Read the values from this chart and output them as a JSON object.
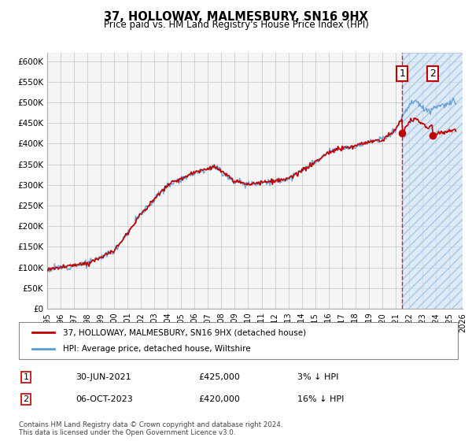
{
  "title": "37, HOLLOWAY, MALMESBURY, SN16 9HX",
  "subtitle": "Price paid vs. HM Land Registry's House Price Index (HPI)",
  "legend_line1": "37, HOLLOWAY, MALMESBURY, SN16 9HX (detached house)",
  "legend_line2": "HPI: Average price, detached house, Wiltshire",
  "annotation1_date": "30-JUN-2021",
  "annotation1_price": "£425,000",
  "annotation1_pct": "3% ↓ HPI",
  "annotation2_date": "06-OCT-2023",
  "annotation2_price": "£420,000",
  "annotation2_pct": "16% ↓ HPI",
  "footer": "Contains HM Land Registry data © Crown copyright and database right 2024.\nThis data is licensed under the Open Government Licence v3.0.",
  "hpi_color": "#5b9bd5",
  "price_color": "#c00000",
  "dashed_color": "#c00000",
  "sale1_x": 2021.5,
  "sale1_y": 425000,
  "sale2_x": 2023.75,
  "sale2_y": 420000,
  "ylim": [
    0,
    620000
  ],
  "xlim_start": 1995,
  "xlim_end": 2026,
  "yticks": [
    0,
    50000,
    100000,
    150000,
    200000,
    250000,
    300000,
    350000,
    400000,
    450000,
    500000,
    550000,
    600000
  ],
  "xticks": [
    1995,
    1996,
    1997,
    1998,
    1999,
    2000,
    2001,
    2002,
    2003,
    2004,
    2005,
    2006,
    2007,
    2008,
    2009,
    2010,
    2011,
    2012,
    2013,
    2014,
    2015,
    2016,
    2017,
    2018,
    2019,
    2020,
    2021,
    2022,
    2023,
    2024,
    2025,
    2026
  ],
  "hatch_start": 2021.5,
  "hatch_color": "#d0e4f5",
  "grid_color": "#cccccc",
  "bg_color": "#f5f5f5"
}
